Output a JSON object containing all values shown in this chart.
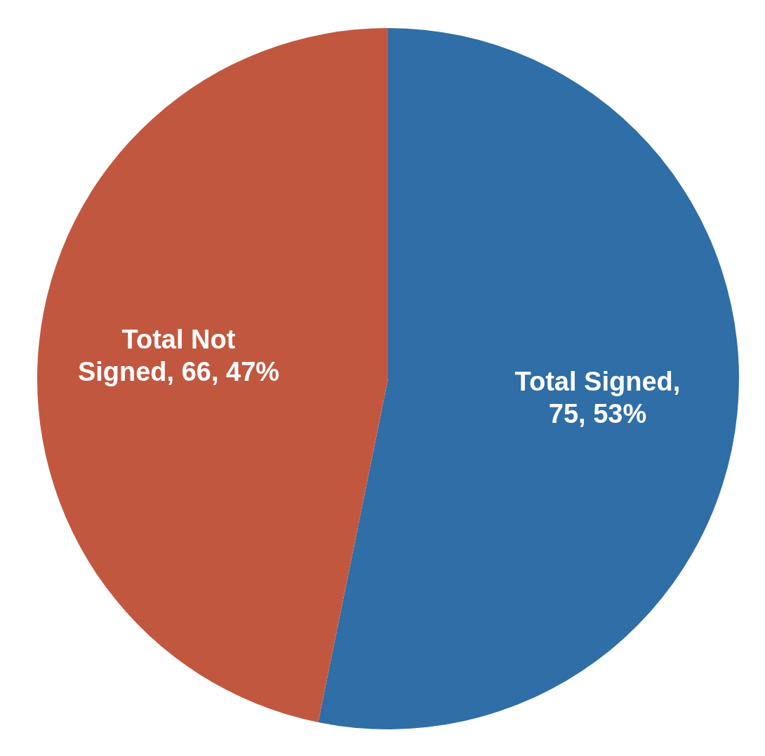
{
  "chart_data": {
    "type": "pie",
    "categories": [
      "Total Signed",
      "Total Not Signed"
    ],
    "values": [
      75,
      66
    ],
    "colors": [
      "#2f6ea6",
      "#c2573f"
    ],
    "value_labels": [
      ", 75, 53%",
      ", 66, 47%"
    ]
  }
}
